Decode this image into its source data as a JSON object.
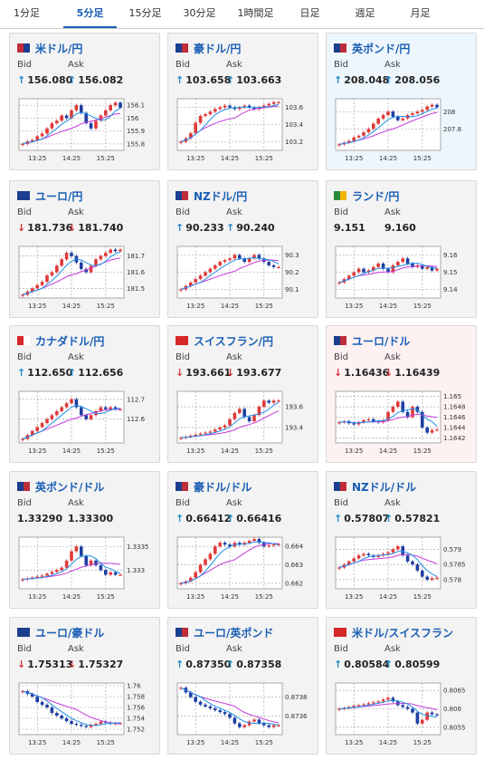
{
  "tabs": [
    "1分足",
    "5分足",
    "15分足",
    "30分足",
    "1時間足",
    "日足",
    "週足",
    "月足"
  ],
  "active_tab": 1,
  "colors": {
    "up_candle": "#e03a3a",
    "down_candle": "#1f3fa0",
    "ma_short": "#1e8fe6",
    "ma_long": "#c33ad9",
    "up_arrow": "#1e88c8",
    "down_arrow": "#d0343c"
  },
  "cards": [
    {
      "name": "米ドル/円",
      "flag": [
        "#bf2d38",
        "#1c3e8e"
      ],
      "bid_label": "Bid",
      "ask_label": "Ask",
      "bid": "156.080",
      "ask": "156.082",
      "dir": "up",
      "dir_icon": "↑",
      "highlight": "",
      "chart_data": {
        "type": "candlestick",
        "x_ticks": [
          "13:25",
          "14:25",
          "15:25"
        ],
        "y_ticks": [
          "156.1",
          "156",
          "155.9",
          "155.8"
        ],
        "ylim": [
          155.75,
          156.15
        ],
        "close": [
          155.8,
          155.82,
          155.83,
          155.86,
          155.88,
          155.92,
          155.96,
          155.98,
          156.02,
          156.0,
          156.06,
          156.1,
          156.04,
          155.96,
          155.92,
          155.98,
          156.02,
          156.06,
          156.1,
          156.12,
          156.08
        ]
      }
    },
    {
      "name": "豪ドル/円",
      "flag": [
        "#1c3e8e",
        "#bf2d38"
      ],
      "bid_label": "Bid",
      "ask_label": "Ask",
      "bid": "103.658",
      "ask": "103.663",
      "dir": "up",
      "dir_icon": "↑",
      "highlight": "",
      "chart_data": {
        "type": "candlestick",
        "x_ticks": [
          "13:25",
          "14:25",
          "15:25"
        ],
        "y_ticks": [
          "103.6",
          "103.4",
          "103.2"
        ],
        "ylim": [
          103.1,
          103.7
        ],
        "close": [
          103.2,
          103.24,
          103.3,
          103.42,
          103.5,
          103.52,
          103.55,
          103.58,
          103.6,
          103.62,
          103.6,
          103.58,
          103.6,
          103.62,
          103.6,
          103.58,
          103.6,
          103.62,
          103.64,
          103.66,
          103.66
        ]
      }
    },
    {
      "name": "英ポンド/円",
      "flag": [
        "#1c3e8e",
        "#bf2d38"
      ],
      "bid_label": "Bid",
      "ask_label": "Ask",
      "bid": "208.048",
      "ask": "208.056",
      "dir": "up",
      "dir_icon": "↑",
      "highlight": "up",
      "chart_data": {
        "type": "candlestick",
        "x_ticks": [
          "13:25",
          "14:25",
          "15:25"
        ],
        "y_ticks": [
          "208",
          "207.8"
        ],
        "ylim": [
          207.55,
          208.15
        ],
        "close": [
          207.62,
          207.64,
          207.66,
          207.7,
          207.72,
          207.76,
          207.8,
          207.86,
          207.92,
          207.96,
          208.0,
          207.94,
          207.9,
          207.92,
          207.96,
          207.98,
          208.0,
          208.02,
          208.06,
          208.08,
          208.05
        ]
      }
    },
    {
      "name": "ユーロ/円",
      "flag": [
        "#1c3e8e",
        "#1c3e8e"
      ],
      "bid_label": "Bid",
      "ask_label": "Ask",
      "bid": "181.736",
      "ask": "181.740",
      "dir": "down",
      "dir_icon": "↓",
      "highlight": "",
      "chart_data": {
        "type": "candlestick",
        "x_ticks": [
          "13:25",
          "14:25",
          "15:25"
        ],
        "y_ticks": [
          "181.7",
          "181.6",
          "181.5"
        ],
        "ylim": [
          181.44,
          181.76
        ],
        "close": [
          181.46,
          181.48,
          181.5,
          181.52,
          181.54,
          181.58,
          181.6,
          181.64,
          181.68,
          181.72,
          181.7,
          181.66,
          181.62,
          181.6,
          181.64,
          181.68,
          181.7,
          181.72,
          181.74,
          181.73,
          181.74
        ]
      }
    },
    {
      "name": "NZドル/円",
      "flag": [
        "#1c3e8e",
        "#bf2d38"
      ],
      "bid_label": "Bid",
      "ask_label": "Ask",
      "bid": "90.233",
      "ask": "90.240",
      "dir": "up",
      "dir_icon": "↑",
      "highlight": "",
      "chart_data": {
        "type": "candlestick",
        "x_ticks": [
          "13:25",
          "14:25",
          "15:25"
        ],
        "y_ticks": [
          "90.3",
          "90.2",
          "90.1"
        ],
        "ylim": [
          90.05,
          90.35
        ],
        "close": [
          90.1,
          90.12,
          90.14,
          90.16,
          90.18,
          90.2,
          90.22,
          90.24,
          90.26,
          90.27,
          90.28,
          90.3,
          90.28,
          90.26,
          90.28,
          90.3,
          90.28,
          90.26,
          90.24,
          90.23,
          90.23
        ]
      }
    },
    {
      "name": "ランド/円",
      "flag": [
        "#2b8b3c",
        "#f2b705"
      ],
      "bid_label": "Bid",
      "ask_label": "Ask",
      "bid": "9.151",
      "ask": "9.160",
      "dir": "none",
      "dir_icon": "",
      "highlight": "",
      "chart_data": {
        "type": "candlestick",
        "x_ticks": [
          "13:25",
          "14:25",
          "15:25"
        ],
        "y_ticks": [
          "9.16",
          "9.15",
          "9.14"
        ],
        "ylim": [
          9.135,
          9.165
        ],
        "close": [
          9.144,
          9.146,
          9.148,
          9.15,
          9.152,
          9.15,
          9.151,
          9.153,
          9.155,
          9.152,
          9.15,
          9.154,
          9.156,
          9.158,
          9.155,
          9.153,
          9.154,
          9.152,
          9.153,
          9.151,
          9.152
        ]
      }
    },
    {
      "name": "カナダドル/円",
      "flag": [
        "#d62828",
        "#ffffff"
      ],
      "bid_label": "Bid",
      "ask_label": "Ask",
      "bid": "112.650",
      "ask": "112.656",
      "dir": "up",
      "dir_icon": "↑",
      "highlight": "",
      "chart_data": {
        "type": "candlestick",
        "x_ticks": [
          "13:25",
          "14:25",
          "15:25"
        ],
        "y_ticks": [
          "112.7",
          "112.6"
        ],
        "ylim": [
          112.48,
          112.74
        ],
        "close": [
          112.5,
          112.52,
          112.54,
          112.56,
          112.58,
          112.6,
          112.62,
          112.64,
          112.66,
          112.68,
          112.7,
          112.66,
          112.62,
          112.6,
          112.62,
          112.64,
          112.66,
          112.65,
          112.66,
          112.65,
          112.65
        ]
      }
    },
    {
      "name": "スイスフラン/円",
      "flag": [
        "#d62828",
        "#d62828"
      ],
      "bid_label": "Bid",
      "ask_label": "Ask",
      "bid": "193.661",
      "ask": "193.677",
      "dir": "down",
      "dir_icon": "↓",
      "highlight": "",
      "chart_data": {
        "type": "candlestick",
        "x_ticks": [
          "13:25",
          "14:25",
          "15:25"
        ],
        "y_ticks": [
          "193.6",
          "193.4"
        ],
        "ylim": [
          193.25,
          193.75
        ],
        "close": [
          193.3,
          193.31,
          193.32,
          193.33,
          193.34,
          193.35,
          193.36,
          193.38,
          193.4,
          193.42,
          193.48,
          193.54,
          193.58,
          193.5,
          193.46,
          193.52,
          193.6,
          193.66,
          193.64,
          193.66,
          193.66
        ]
      }
    },
    {
      "name": "ユーロ/ドル",
      "flag": [
        "#1c3e8e",
        "#bf2d38"
      ],
      "bid_label": "Bid",
      "ask_label": "Ask",
      "bid": "1.16436",
      "ask": "1.16439",
      "dir": "down",
      "dir_icon": "↓",
      "highlight": "down",
      "chart_data": {
        "type": "candlestick",
        "x_ticks": [
          "13:25",
          "14:25",
          "15:25"
        ],
        "y_ticks": [
          "1.165",
          "1.1648",
          "1.1646",
          "1.1644",
          "1.1642"
        ],
        "ylim": [
          1.1641,
          1.1651
        ],
        "close": [
          1.1645,
          1.16452,
          1.16448,
          1.16446,
          1.1645,
          1.16454,
          1.16456,
          1.16452,
          1.1645,
          1.16454,
          1.1647,
          1.1648,
          1.1649,
          1.1647,
          1.1646,
          1.1648,
          1.1647,
          1.1644,
          1.1643,
          1.16435,
          1.16436
        ]
      }
    },
    {
      "name": "英ポンド/ドル",
      "flag": [
        "#1c3e8e",
        "#bf2d38"
      ],
      "bid_label": "Bid",
      "ask_label": "Ask",
      "bid": "1.33290",
      "ask": "1.33300",
      "dir": "none",
      "dir_icon": "",
      "highlight": "",
      "chart_data": {
        "type": "candlestick",
        "x_ticks": [
          "13:25",
          "14:25",
          "15:25"
        ],
        "y_ticks": [
          "1.3335",
          "1.333"
        ],
        "ylim": [
          1.3326,
          1.3337
        ],
        "close": [
          1.3328,
          1.33282,
          1.33284,
          1.33286,
          1.33288,
          1.33292,
          1.33296,
          1.333,
          1.33305,
          1.3332,
          1.3334,
          1.3335,
          1.3333,
          1.3331,
          1.3332,
          1.3331,
          1.333,
          1.3329,
          1.33295,
          1.3329,
          1.3329
        ]
      }
    },
    {
      "name": "豪ドル/ドル",
      "flag": [
        "#1c3e8e",
        "#bf2d38"
      ],
      "bid_label": "Bid",
      "ask_label": "Ask",
      "bid": "0.66412",
      "ask": "0.66416",
      "dir": "up",
      "dir_icon": "↑",
      "highlight": "",
      "chart_data": {
        "type": "candlestick",
        "x_ticks": [
          "13:25",
          "14:25",
          "15:25"
        ],
        "y_ticks": [
          "0.664",
          "0.663",
          "0.662"
        ],
        "ylim": [
          0.6617,
          0.6645
        ],
        "close": [
          0.662,
          0.6621,
          0.6623,
          0.6626,
          0.663,
          0.6633,
          0.6636,
          0.664,
          0.6642,
          0.6641,
          0.664,
          0.6642,
          0.6641,
          0.6642,
          0.6643,
          0.6644,
          0.6642,
          0.664,
          0.66405,
          0.6641,
          0.66412
        ]
      }
    },
    {
      "name": "NZドル/ドル",
      "flag": [
        "#1c3e8e",
        "#bf2d38"
      ],
      "bid_label": "Bid",
      "ask_label": "Ask",
      "bid": "0.57807",
      "ask": "0.57821",
      "dir": "up",
      "dir_icon": "↑",
      "highlight": "",
      "chart_data": {
        "type": "candlestick",
        "x_ticks": [
          "13:25",
          "14:25",
          "15:25"
        ],
        "y_ticks": [
          "0.579",
          "0.5785",
          "0.578"
        ],
        "ylim": [
          0.5777,
          0.5794
        ],
        "close": [
          0.5784,
          0.5785,
          0.5786,
          0.5787,
          0.5788,
          0.57885,
          0.5788,
          0.57875,
          0.5788,
          0.57885,
          0.5789,
          0.579,
          0.5791,
          0.5788,
          0.5786,
          0.5785,
          0.5783,
          0.5781,
          0.578,
          0.57805,
          0.57807
        ]
      }
    },
    {
      "name": "ユーロ/豪ドル",
      "flag": [
        "#1c3e8e",
        "#1c3e8e"
      ],
      "bid_label": "Bid",
      "ask_label": "Ask",
      "bid": "1.75313",
      "ask": "1.75327",
      "dir": "down",
      "dir_icon": "↓",
      "highlight": "",
      "chart_data": {
        "type": "candlestick",
        "x_ticks": [
          "13:25",
          "14:25",
          "15:25"
        ],
        "y_ticks": [
          "1.76",
          "1.758",
          "1.756",
          "1.754",
          "1.752"
        ],
        "ylim": [
          1.751,
          1.7605
        ],
        "close": [
          1.759,
          1.7585,
          1.758,
          1.757,
          1.7565,
          1.756,
          1.755,
          1.7545,
          1.754,
          1.7535,
          1.753,
          1.7528,
          1.7526,
          1.7524,
          1.7528,
          1.753,
          1.7534,
          1.7532,
          1.753,
          1.7531,
          1.7531
        ]
      }
    },
    {
      "name": "ユーロ/英ポンド",
      "flag": [
        "#1c3e8e",
        "#bf2d38"
      ],
      "bid_label": "Bid",
      "ask_label": "Ask",
      "bid": "0.87350",
      "ask": "0.87358",
      "dir": "up",
      "dir_icon": "↑",
      "highlight": "",
      "chart_data": {
        "type": "candlestick",
        "x_ticks": [
          "13:25",
          "14:25",
          "15:25"
        ],
        "y_ticks": [
          "0.8738",
          "0.8736"
        ],
        "ylim": [
          0.8734,
          0.87395
        ],
        "close": [
          0.8739,
          0.87385,
          0.8738,
          0.87375,
          0.87372,
          0.8737,
          0.87368,
          0.87366,
          0.87364,
          0.87362,
          0.87358,
          0.87352,
          0.87348,
          0.8735,
          0.87354,
          0.87356,
          0.87352,
          0.8735,
          0.87348,
          0.8735,
          0.8735
        ]
      }
    },
    {
      "name": "米ドル/スイスフラン",
      "flag": [
        "#d62828",
        "#d62828"
      ],
      "bid_label": "Bid",
      "ask_label": "Ask",
      "bid": "0.80584",
      "ask": "0.80599",
      "dir": "up",
      "dir_icon": "↑",
      "highlight": "",
      "chart_data": {
        "type": "candlestick",
        "x_ticks": [
          "13:25",
          "14:25",
          "15:25"
        ],
        "y_ticks": [
          "0.8065",
          "0.806",
          "0.8055"
        ],
        "ylim": [
          0.8053,
          0.8067
        ],
        "close": [
          0.806,
          0.80602,
          0.80605,
          0.80608,
          0.8061,
          0.80612,
          0.80615,
          0.80618,
          0.8062,
          0.80625,
          0.8063,
          0.8062,
          0.8061,
          0.80605,
          0.806,
          0.8059,
          0.8056,
          0.8057,
          0.8059,
          0.80585,
          0.80584
        ]
      }
    }
  ]
}
